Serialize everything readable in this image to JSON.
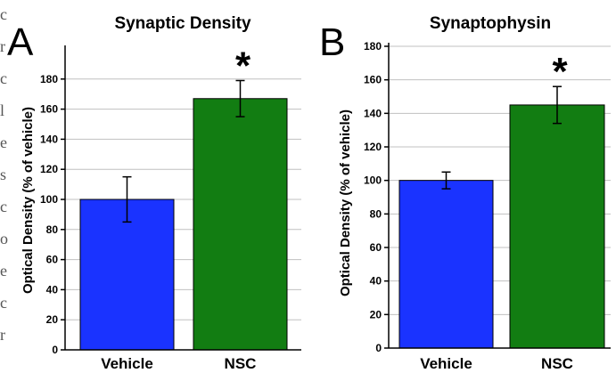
{
  "panel_letters": [
    "A",
    "B"
  ],
  "edge_text": [
    "c",
    "r",
    "c",
    "l",
    "e",
    "s",
    "c",
    "o",
    "e",
    "c",
    "r"
  ],
  "chart_data": [
    {
      "type": "bar",
      "title": "Synaptic Density",
      "ylabel": "Optical Density (% of vehicle)",
      "xlabel": "",
      "categories": [
        "Vehicle",
        "NSC"
      ],
      "values": [
        100,
        167
      ],
      "error": [
        15,
        12
      ],
      "colors": [
        "#1a33ff",
        "#127d12"
      ],
      "ylim": [
        0,
        200
      ],
      "yticks": [
        0,
        20,
        40,
        60,
        80,
        100,
        120,
        140,
        160,
        180
      ],
      "annotations": [
        {
          "category": "NSC",
          "text": "*"
        }
      ],
      "grid": "horizontal"
    },
    {
      "type": "bar",
      "title": "Synaptophysin",
      "ylabel": "Optical Density (% of vehicle)",
      "xlabel": "",
      "categories": [
        "Vehicle",
        "NSC"
      ],
      "values": [
        100,
        145
      ],
      "error": [
        5,
        11
      ],
      "colors": [
        "#1a33ff",
        "#127d12"
      ],
      "ylim": [
        0,
        180
      ],
      "yticks": [
        0,
        20,
        40,
        60,
        80,
        100,
        120,
        140,
        160,
        180
      ],
      "annotations": [
        {
          "category": "NSC",
          "text": "*"
        }
      ],
      "grid": "horizontal"
    }
  ]
}
